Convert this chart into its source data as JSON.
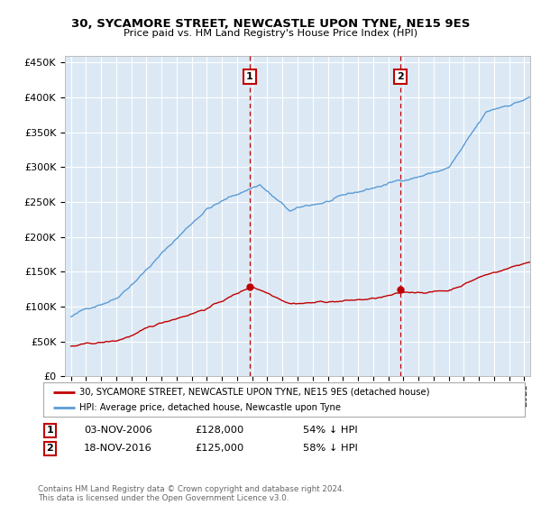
{
  "title": "30, SYCAMORE STREET, NEWCASTLE UPON TYNE, NE15 9ES",
  "subtitle": "Price paid vs. HM Land Registry's House Price Index (HPI)",
  "ylim": [
    0,
    460000
  ],
  "yticks": [
    0,
    50000,
    100000,
    150000,
    200000,
    250000,
    300000,
    350000,
    400000,
    450000
  ],
  "bg_color": "#dce9f5",
  "hpi_color": "#5b9bd5",
  "sale_color": "#c00000",
  "sale1_year_idx": 143,
  "sale2_year_idx": 263,
  "sale1_price": 128000,
  "sale2_price": 125000,
  "sale1_label": "03-NOV-2006",
  "sale2_label": "18-NOV-2016",
  "sale1_pct": "54% ↓ HPI",
  "sale2_pct": "58% ↓ HPI",
  "legend_sale_label": "30, SYCAMORE STREET, NEWCASTLE UPON TYNE, NE15 9ES (detached house)",
  "legend_hpi_label": "HPI: Average price, detached house, Newcastle upon Tyne",
  "footnote": "Contains HM Land Registry data © Crown copyright and database right 2024.\nThis data is licensed under the Open Government Licence v3.0."
}
